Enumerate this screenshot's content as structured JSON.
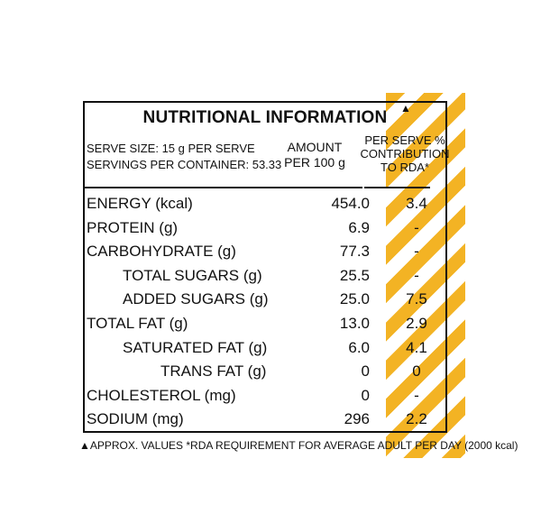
{
  "title": "NUTRITIONAL INFORMATION",
  "title_marker": "▲",
  "header": {
    "serve_size": "SERVE SIZE: 15 g PER SERVE",
    "servings": "SERVINGS PER CONTAINER: 53.33",
    "amount_l1": "AMOUNT",
    "amount_l2": "PER 100 g",
    "rda_l1": "PER SERVE %",
    "rda_l2": "CONTRIBUTION",
    "rda_l3": "TO RDA*"
  },
  "rows": [
    {
      "label": "ENERGY (kcal)",
      "amount": "454.0",
      "rda": "3.4",
      "indent": 0
    },
    {
      "label": "PROTEIN (g)",
      "amount": "6.9",
      "rda": "-",
      "indent": 0
    },
    {
      "label": "CARBOHYDRATE (g)",
      "amount": "77.3",
      "rda": "-",
      "indent": 0
    },
    {
      "label": "TOTAL SUGARS (g)",
      "amount": "25.5",
      "rda": "-",
      "indent": 1
    },
    {
      "label": "ADDED SUGARS (g)",
      "amount": "25.0",
      "rda": "7.5",
      "indent": 1
    },
    {
      "label": "TOTAL FAT (g)",
      "amount": "13.0",
      "rda": "2.9",
      "indent": 0
    },
    {
      "label": "SATURATED FAT (g)",
      "amount": "6.0",
      "rda": "4.1",
      "indent": 1
    },
    {
      "label": "TRANS FAT (g)",
      "amount": "0",
      "rda": "0",
      "indent": 2
    },
    {
      "label": "CHOLESTEROL (mg)",
      "amount": "0",
      "rda": "-",
      "indent": 0
    },
    {
      "label": "SODIUM (mg)",
      "amount": "296",
      "rda": "2.2",
      "indent": 0
    }
  ],
  "footnote": "▲APPROX. VALUES *RDA REQUIREMENT FOR AVERAGE ADULT PER DAY (2000 kcal)",
  "colors": {
    "accent": "#f3b324",
    "text": "#111111"
  }
}
